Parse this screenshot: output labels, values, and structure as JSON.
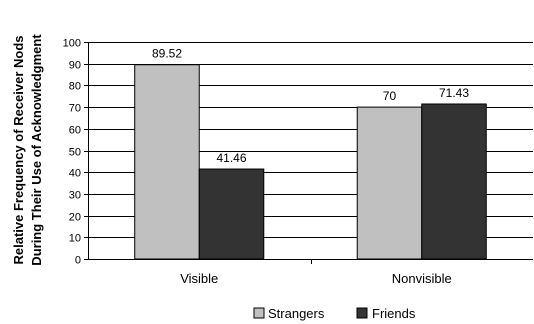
{
  "chart_data": {
    "type": "bar",
    "categories": [
      "Visible",
      "Nonvisible"
    ],
    "series": [
      {
        "name": "Strangers",
        "values": [
          89.52,
          70
        ],
        "labels": [
          "89.52",
          "70"
        ],
        "color": "#c0c0c0"
      },
      {
        "name": "Friends",
        "values": [
          41.46,
          71.43
        ],
        "labels": [
          "41.46",
          "71.43"
        ],
        "color": "#333333"
      }
    ],
    "ylabel_lines": [
      "Relative Frequency of Receiver Nods",
      "During Their Use of Acknowledgment"
    ],
    "ylim": [
      0,
      100
    ],
    "yticks": [
      "0",
      "10",
      "20",
      "30",
      "40",
      "50",
      "60",
      "70",
      "80",
      "90",
      "100"
    ],
    "grid": true,
    "legend_position": "bottom"
  }
}
